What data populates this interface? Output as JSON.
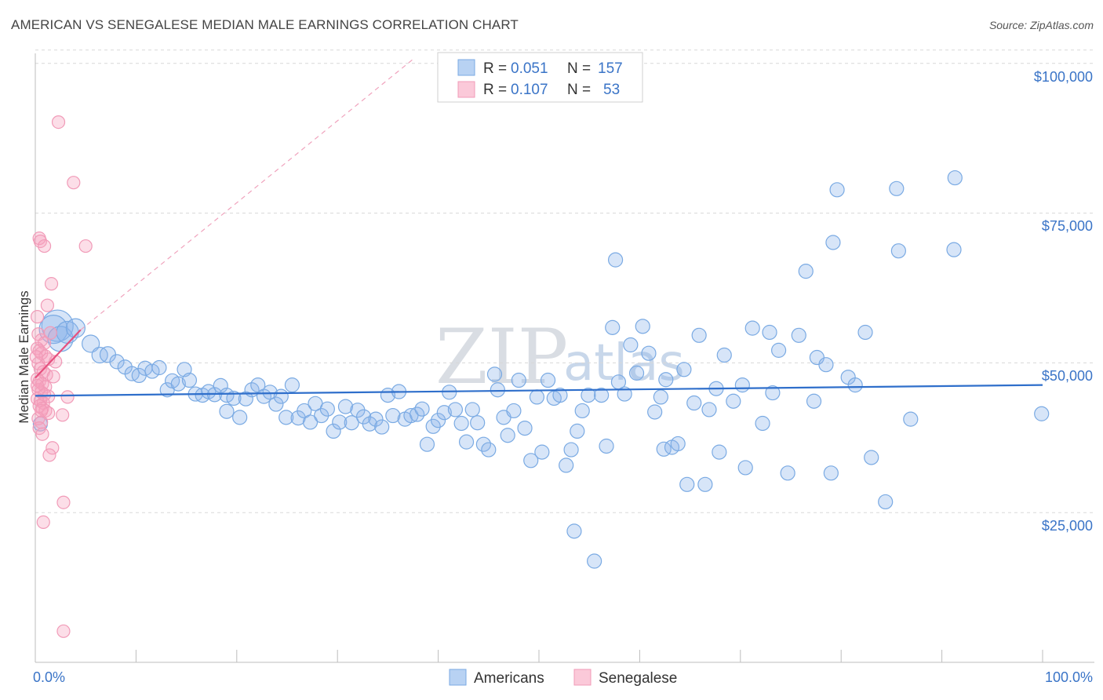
{
  "title": "AMERICAN VS SENEGALESE MEDIAN MALE EARNINGS CORRELATION CHART",
  "source": "Source: ZipAtlas.com",
  "watermark": {
    "zip": "ZIP",
    "atlas": "atlas"
  },
  "colors": {
    "americans": "#7aaae3",
    "senegalese": "#f19bb8",
    "americans_line": "#2f6fcb",
    "senegalese_line": "#e6507e",
    "tick": "#3a74c7"
  },
  "legend": {
    "rows": [
      {
        "r_label": "R =",
        "r_value": "0.051",
        "n_label": "N =",
        "n_value": "157"
      },
      {
        "r_label": "R =",
        "r_value": "0.107",
        "n_label": "N =",
        "n_value": "53"
      }
    ]
  },
  "bottom_legend": {
    "americans": "Americans",
    "senegalese": "Senegalese"
  },
  "chart_data": {
    "type": "scatter",
    "title": "AMERICAN VS SENEGALESE MEDIAN MALE EARNINGS CORRELATION CHART",
    "xlabel": "",
    "ylabel": "Median Male Earnings",
    "xlim": [
      0,
      100
    ],
    "ylim": [
      0,
      105000
    ],
    "x_tick_labels": [
      "0.0%",
      "100.0%"
    ],
    "y_ticks": [
      25000,
      50000,
      75000,
      100000
    ],
    "y_tick_labels": [
      "$25,000",
      "$50,000",
      "$75,000",
      "$100,000"
    ],
    "grid": true,
    "series": [
      {
        "name": "Americans",
        "r": 0.051,
        "n": 157,
        "trend": {
          "x": [
            0,
            100
          ],
          "y": [
            44500,
            46300
          ]
        },
        "points": [
          [
            0.5,
            39800,
            9
          ],
          [
            2.2,
            56200,
            20
          ],
          [
            1.8,
            55600,
            18
          ],
          [
            2.5,
            54000,
            16
          ],
          [
            3.2,
            55100,
            14
          ],
          [
            4.0,
            55800,
            12
          ],
          [
            5.5,
            53200,
            11
          ],
          [
            6.4,
            51300,
            10
          ],
          [
            7.2,
            51400,
            10
          ],
          [
            8.1,
            50200,
            9
          ],
          [
            8.9,
            49300,
            9
          ],
          [
            9.6,
            48200,
            9
          ],
          [
            10.3,
            47900,
            9
          ],
          [
            10.9,
            49100,
            9
          ],
          [
            11.6,
            48600,
            9
          ],
          [
            12.3,
            49200,
            9
          ],
          [
            13.1,
            45500,
            9
          ],
          [
            13.6,
            47000,
            9
          ],
          [
            14.2,
            46500,
            9
          ],
          [
            14.8,
            48900,
            9
          ],
          [
            15.3,
            47100,
            9
          ],
          [
            15.9,
            44800,
            9
          ],
          [
            16.6,
            44600,
            9
          ],
          [
            17.2,
            45200,
            9
          ],
          [
            17.8,
            44700,
            9
          ],
          [
            18.4,
            46200,
            9
          ],
          [
            19.0,
            44600,
            9
          ],
          [
            19.0,
            41900,
            9
          ],
          [
            19.7,
            44100,
            9
          ],
          [
            20.3,
            40900,
            9
          ],
          [
            20.9,
            44000,
            9
          ],
          [
            21.5,
            45500,
            9
          ],
          [
            22.1,
            46300,
            9
          ],
          [
            22.7,
            44400,
            9
          ],
          [
            23.3,
            45100,
            9
          ],
          [
            23.9,
            43100,
            9
          ],
          [
            24.4,
            44400,
            9
          ],
          [
            24.9,
            40900,
            9
          ],
          [
            25.5,
            46300,
            9
          ],
          [
            26.1,
            40800,
            9
          ],
          [
            26.7,
            42000,
            9
          ],
          [
            27.3,
            40100,
            9
          ],
          [
            27.8,
            43200,
            9
          ],
          [
            28.4,
            41200,
            9
          ],
          [
            29.0,
            42300,
            9
          ],
          [
            29.6,
            38600,
            9
          ],
          [
            30.2,
            40100,
            9
          ],
          [
            30.8,
            42700,
            9
          ],
          [
            31.4,
            40000,
            9
          ],
          [
            32.0,
            42100,
            9
          ],
          [
            32.6,
            41000,
            9
          ],
          [
            33.2,
            39800,
            9
          ],
          [
            33.8,
            40600,
            9
          ],
          [
            34.4,
            39300,
            9
          ],
          [
            35.0,
            44600,
            9
          ],
          [
            35.5,
            41200,
            9
          ],
          [
            36.1,
            45200,
            9
          ],
          [
            36.7,
            40600,
            9
          ],
          [
            37.3,
            41200,
            9
          ],
          [
            37.9,
            41400,
            9
          ],
          [
            38.4,
            42300,
            9
          ],
          [
            38.9,
            36400,
            9
          ],
          [
            39.5,
            39400,
            9
          ],
          [
            40.0,
            40400,
            9
          ],
          [
            40.6,
            41700,
            9
          ],
          [
            41.1,
            45100,
            9
          ],
          [
            41.7,
            42200,
            9
          ],
          [
            42.3,
            39900,
            9
          ],
          [
            42.8,
            36800,
            9
          ],
          [
            43.4,
            42200,
            9
          ],
          [
            43.9,
            40000,
            9
          ],
          [
            44.5,
            36400,
            9
          ],
          [
            45.0,
            35500,
            9
          ],
          [
            45.6,
            48100,
            9
          ],
          [
            45.9,
            45500,
            9
          ],
          [
            46.5,
            40900,
            9
          ],
          [
            46.9,
            37900,
            9
          ],
          [
            47.5,
            42000,
            9
          ],
          [
            48.0,
            47100,
            9
          ],
          [
            48.6,
            39100,
            9
          ],
          [
            49.2,
            33700,
            9
          ],
          [
            49.8,
            44300,
            9
          ],
          [
            50.3,
            35100,
            9
          ],
          [
            50.9,
            47100,
            9
          ],
          [
            51.5,
            44100,
            9
          ],
          [
            52.1,
            44600,
            9
          ],
          [
            52.7,
            32900,
            9
          ],
          [
            53.2,
            35500,
            9
          ],
          [
            53.8,
            38600,
            9
          ],
          [
            53.5,
            21900,
            9
          ],
          [
            54.3,
            42000,
            9
          ],
          [
            54.9,
            44600,
            9
          ],
          [
            55.5,
            16900,
            9
          ],
          [
            56.2,
            44600,
            9
          ],
          [
            56.7,
            36100,
            9
          ],
          [
            57.3,
            55900,
            9
          ],
          [
            57.6,
            67200,
            9
          ],
          [
            57.9,
            46800,
            9
          ],
          [
            58.5,
            44800,
            9
          ],
          [
            59.1,
            53000,
            9
          ],
          [
            59.7,
            48300,
            9
          ],
          [
            60.3,
            56100,
            9
          ],
          [
            60.9,
            51600,
            9
          ],
          [
            61.5,
            41800,
            9
          ],
          [
            62.1,
            44300,
            9
          ],
          [
            62.6,
            47200,
            9
          ],
          [
            62.4,
            35600,
            9
          ],
          [
            63.2,
            35900,
            9
          ],
          [
            63.8,
            36500,
            9
          ],
          [
            64.4,
            48900,
            9
          ],
          [
            64.7,
            29700,
            9
          ],
          [
            65.4,
            43300,
            9
          ],
          [
            65.9,
            54600,
            9
          ],
          [
            66.5,
            29700,
            9
          ],
          [
            66.9,
            42200,
            9
          ],
          [
            67.6,
            45700,
            9
          ],
          [
            67.9,
            35100,
            9
          ],
          [
            68.4,
            51300,
            9
          ],
          [
            69.3,
            43600,
            9
          ],
          [
            70.2,
            46300,
            9
          ],
          [
            70.5,
            32500,
            9
          ],
          [
            71.2,
            55800,
            9
          ],
          [
            72.2,
            39900,
            9
          ],
          [
            72.9,
            55100,
            9
          ],
          [
            73.2,
            45000,
            9
          ],
          [
            73.8,
            52100,
            9
          ],
          [
            74.7,
            31600,
            9
          ],
          [
            75.8,
            54600,
            9
          ],
          [
            76.5,
            65300,
            9
          ],
          [
            77.3,
            43600,
            9
          ],
          [
            77.6,
            50900,
            9
          ],
          [
            78.5,
            49700,
            9
          ],
          [
            79.0,
            31600,
            9
          ],
          [
            79.2,
            70100,
            9
          ],
          [
            79.6,
            78900,
            9
          ],
          [
            80.7,
            47600,
            9
          ],
          [
            81.4,
            46300,
            9
          ],
          [
            83.0,
            34200,
            9
          ],
          [
            82.4,
            55100,
            9
          ],
          [
            84.4,
            26800,
            9
          ],
          [
            85.5,
            79100,
            9
          ],
          [
            85.7,
            68700,
            9
          ],
          [
            86.9,
            40600,
            9
          ],
          [
            91.2,
            68900,
            9
          ],
          [
            91.3,
            80900,
            9
          ],
          [
            99.9,
            41500,
            9
          ]
        ]
      },
      {
        "name": "Senegalese",
        "r": 0.107,
        "n": 53,
        "trend": {
          "x": [
            0,
            4.5
          ],
          "y": [
            47500,
            55500
          ]
        },
        "trend_dashed_extension": {
          "x": [
            4.5,
            37.5
          ],
          "y": [
            55500,
            100700
          ]
        },
        "points": [
          [
            2.3,
            90200,
            8
          ],
          [
            3.8,
            80100,
            8
          ],
          [
            0.4,
            70800,
            8
          ],
          [
            0.5,
            70300,
            8
          ],
          [
            0.9,
            69500,
            8
          ],
          [
            5.0,
            69500,
            8
          ],
          [
            1.6,
            63200,
            8
          ],
          [
            1.2,
            59600,
            8
          ],
          [
            0.2,
            57700,
            8
          ],
          [
            0.3,
            54800,
            8
          ],
          [
            0.6,
            53800,
            8
          ],
          [
            0.9,
            53300,
            8
          ],
          [
            0.2,
            52400,
            8
          ],
          [
            0.4,
            52000,
            8
          ],
          [
            0.6,
            51600,
            8
          ],
          [
            1.0,
            51100,
            8
          ],
          [
            1.3,
            50600,
            8
          ],
          [
            0.3,
            49900,
            8
          ],
          [
            0.5,
            49000,
            8
          ],
          [
            0.8,
            48500,
            8
          ],
          [
            1.1,
            48000,
            8
          ],
          [
            1.8,
            47700,
            8
          ],
          [
            0.2,
            47300,
            8
          ],
          [
            0.4,
            46900,
            8
          ],
          [
            0.7,
            46500,
            8
          ],
          [
            1.0,
            46000,
            8
          ],
          [
            0.3,
            45500,
            8
          ],
          [
            0.6,
            45100,
            8
          ],
          [
            0.9,
            44700,
            8
          ],
          [
            1.3,
            44400,
            8
          ],
          [
            0.2,
            44000,
            8
          ],
          [
            0.5,
            43700,
            8
          ],
          [
            0.8,
            43300,
            8
          ],
          [
            3.2,
            44300,
            8
          ],
          [
            0.4,
            42800,
            8
          ],
          [
            0.7,
            42400,
            8
          ],
          [
            1.0,
            42000,
            8
          ],
          [
            1.3,
            41600,
            8
          ],
          [
            2.7,
            41300,
            8
          ],
          [
            0.3,
            40700,
            8
          ],
          [
            0.6,
            40100,
            8
          ],
          [
            0.4,
            39100,
            8
          ],
          [
            0.7,
            38100,
            8
          ],
          [
            1.7,
            35800,
            8
          ],
          [
            1.4,
            34600,
            8
          ],
          [
            2.8,
            26700,
            8
          ],
          [
            0.8,
            23400,
            8
          ],
          [
            2.8,
            5200,
            8
          ],
          [
            1.5,
            55000,
            8
          ],
          [
            2.0,
            50200,
            8
          ],
          [
            0.1,
            51000,
            8
          ],
          [
            0.2,
            46200,
            8
          ],
          [
            0.6,
            42000,
            8
          ]
        ]
      }
    ]
  }
}
